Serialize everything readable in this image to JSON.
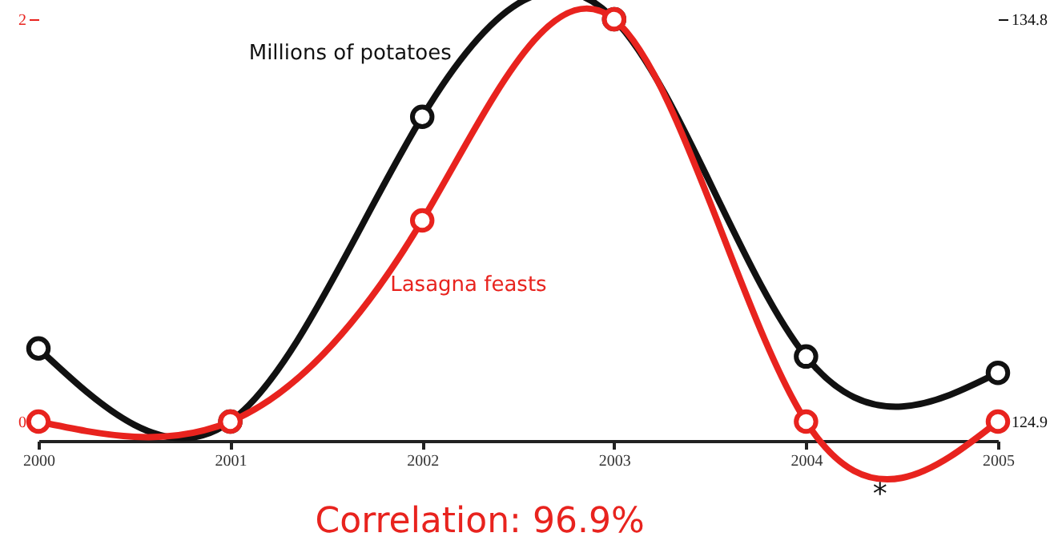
{
  "chart_data": {
    "type": "line",
    "x": [
      2000,
      2001,
      2002,
      2003,
      2004,
      2005
    ],
    "xlim": [
      2000,
      2005
    ],
    "xticks": [
      2000,
      2001,
      2002,
      2003,
      2004,
      2005
    ],
    "ylim": [
      0,
      2
    ],
    "yticks": [
      0,
      2
    ],
    "y2lim": [
      124.9,
      134.8
    ],
    "y2ticks": [
      124.9,
      134.8
    ],
    "series": [
      {
        "name": "Millions of potatoes",
        "color": "#111111",
        "axis": "y2",
        "values": [
          126.7,
          124.9,
          132.4,
          134.8,
          126.5,
          126.1
        ]
      },
      {
        "name": "Lasagna feasts",
        "color": "#e8231e",
        "values": [
          0,
          0,
          1.0,
          2,
          0,
          0
        ]
      }
    ],
    "marker": "circle",
    "line_style": "solid",
    "annotations": [
      "Correlation: 96.9%",
      "*"
    ]
  }
}
